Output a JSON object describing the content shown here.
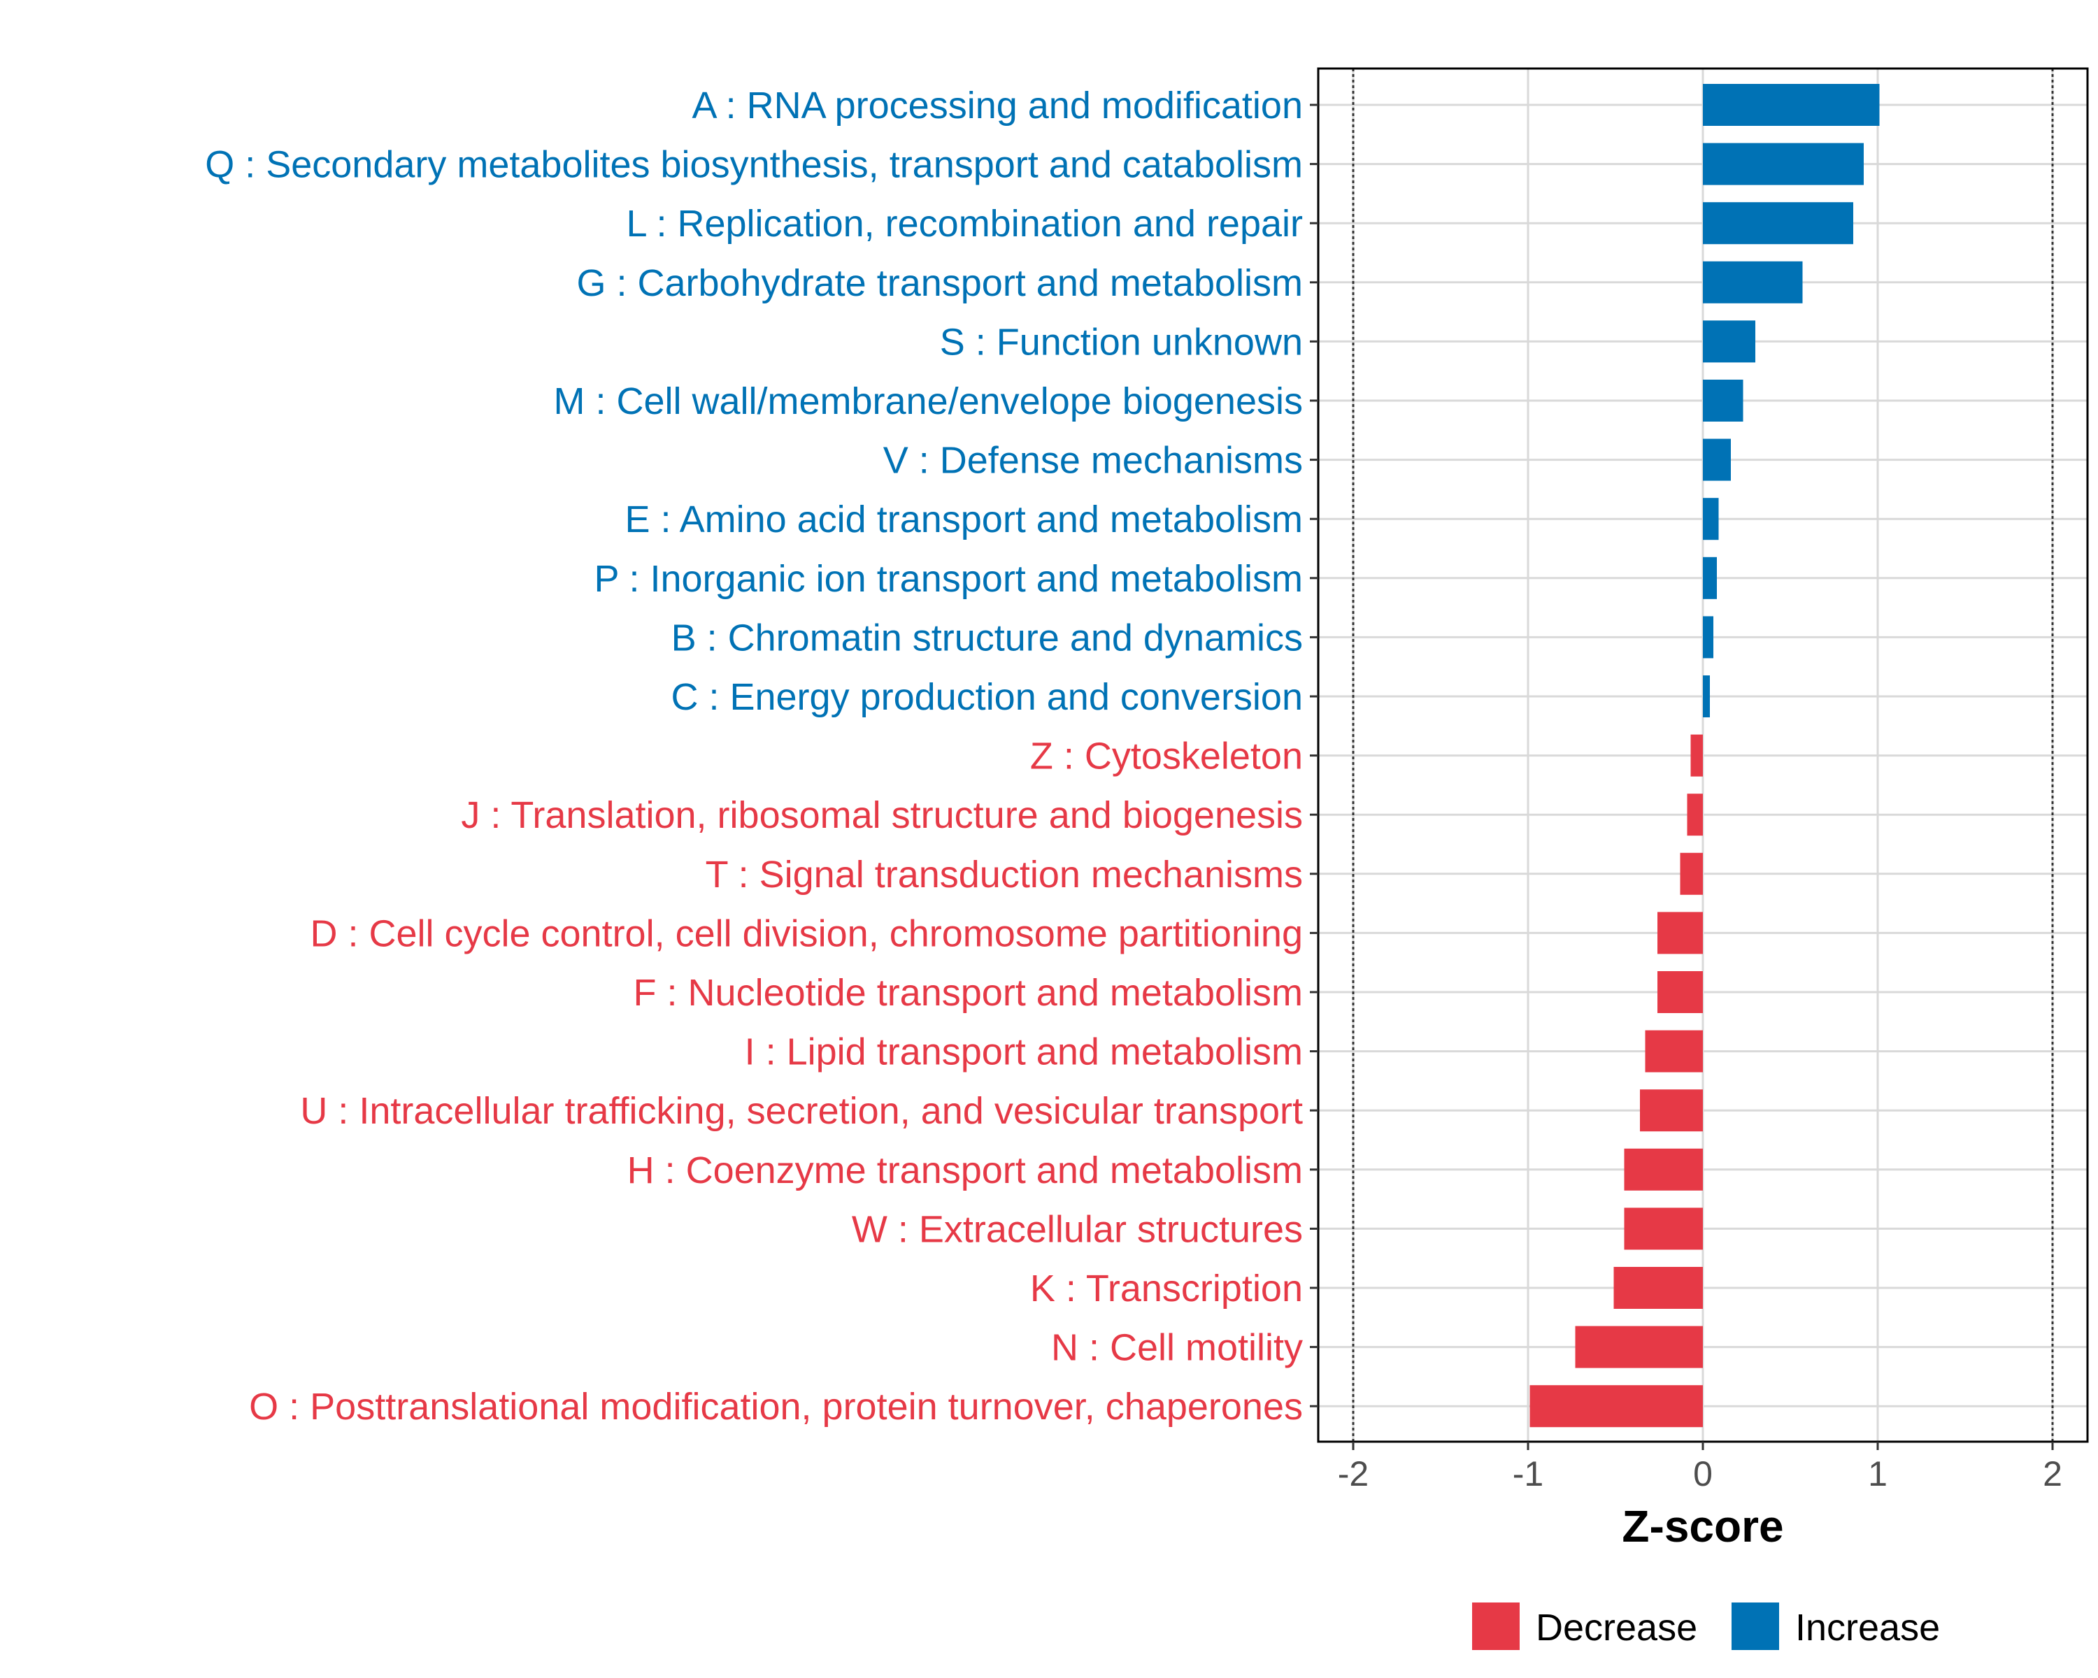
{
  "chart_data": {
    "type": "bar",
    "orientation": "horizontal",
    "xlabel": "Z-score",
    "xlim": [
      -2.2,
      2.2
    ],
    "xticks": [
      -2,
      -1,
      0,
      1,
      2
    ],
    "xtick_labels": [
      "-2",
      "-1",
      "0",
      "1",
      "2"
    ],
    "reference_lines": [
      -2,
      2
    ],
    "grid": true,
    "colors": {
      "Increase": "#0072b5",
      "Decrease": "#e63946"
    },
    "categories": [
      "A : RNA processing and modification",
      "Q : Secondary metabolites biosynthesis, transport and catabolism",
      "L : Replication, recombination and repair",
      "G : Carbohydrate transport and metabolism",
      "S : Function unknown",
      "M : Cell wall/membrane/envelope biogenesis",
      "V : Defense mechanisms",
      "E : Amino acid transport and metabolism",
      "P : Inorganic ion transport and metabolism",
      "B : Chromatin structure and dynamics",
      "C : Energy production and conversion",
      "Z : Cytoskeleton",
      "J : Translation, ribosomal structure and biogenesis",
      "T : Signal transduction mechanisms",
      "D : Cell cycle control, cell division, chromosome partitioning",
      "F : Nucleotide transport and metabolism",
      "I : Lipid transport and metabolism",
      "U : Intracellular trafficking, secretion, and vesicular transport",
      "H : Coenzyme transport and metabolism",
      "W : Extracellular structures",
      "K : Transcription",
      "N : Cell motility",
      "O : Posttranslational modification, protein turnover, chaperones"
    ],
    "values": [
      1.01,
      0.92,
      0.86,
      0.57,
      0.3,
      0.23,
      0.16,
      0.09,
      0.08,
      0.06,
      0.04,
      -0.07,
      -0.09,
      -0.13,
      -0.26,
      -0.26,
      -0.33,
      -0.36,
      -0.45,
      -0.45,
      -0.51,
      -0.73,
      -0.99
    ],
    "groups": [
      "Increase",
      "Increase",
      "Increase",
      "Increase",
      "Increase",
      "Increase",
      "Increase",
      "Increase",
      "Increase",
      "Increase",
      "Increase",
      "Decrease",
      "Decrease",
      "Decrease",
      "Decrease",
      "Decrease",
      "Decrease",
      "Decrease",
      "Decrease",
      "Decrease",
      "Decrease",
      "Decrease",
      "Decrease"
    ],
    "legend": {
      "position": "bottom",
      "entries": [
        "Decrease",
        "Increase"
      ]
    }
  }
}
